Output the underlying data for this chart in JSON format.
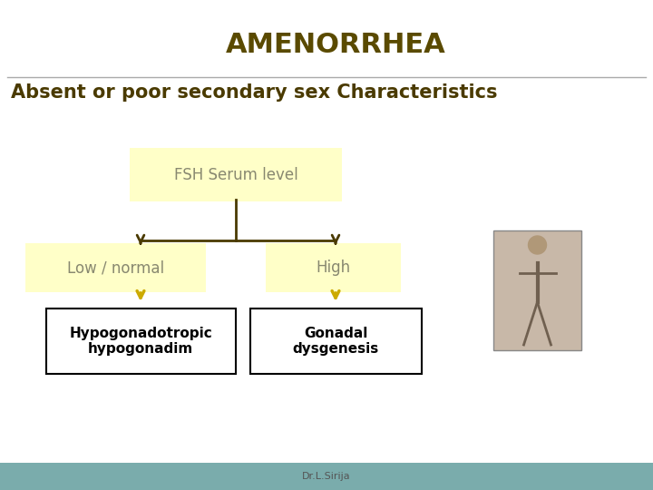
{
  "title": "AMENORRHEA",
  "title_color": "#5a4a00",
  "title_fontsize": 22,
  "subtitle": "Absent or poor secondary sex Characteristics",
  "subtitle_color": "#4a3a00",
  "subtitle_fontsize": 15,
  "bg_color": "#ffffff",
  "header_line_color": "#aaaaaa",
  "footer_color": "#7aacac",
  "footer_text": "Dr.L.Sirija",
  "footer_text_color": "#555555",
  "node_fsh_label": "FSH Serum level",
  "node_fsh_color": "#ffffc8",
  "node_fsh_fontcolor": "#888870",
  "node_low_label": "Low / normal",
  "node_low_color": "#ffffc8",
  "node_low_fontcolor": "#888870",
  "node_high_label": "High",
  "node_high_color": "#ffffc8",
  "node_high_fontcolor": "#888870",
  "node_hypo_label": "Hypogonadotropic\nhypogonadim",
  "node_hypo_fontcolor": "#000000",
  "node_gonadal_label": "Gonadal\ndysgenesis",
  "node_gonadal_fontcolor": "#000000",
  "arrow_color_dark": "#4a3a00",
  "arrow_color_yellow": "#ccaa00"
}
